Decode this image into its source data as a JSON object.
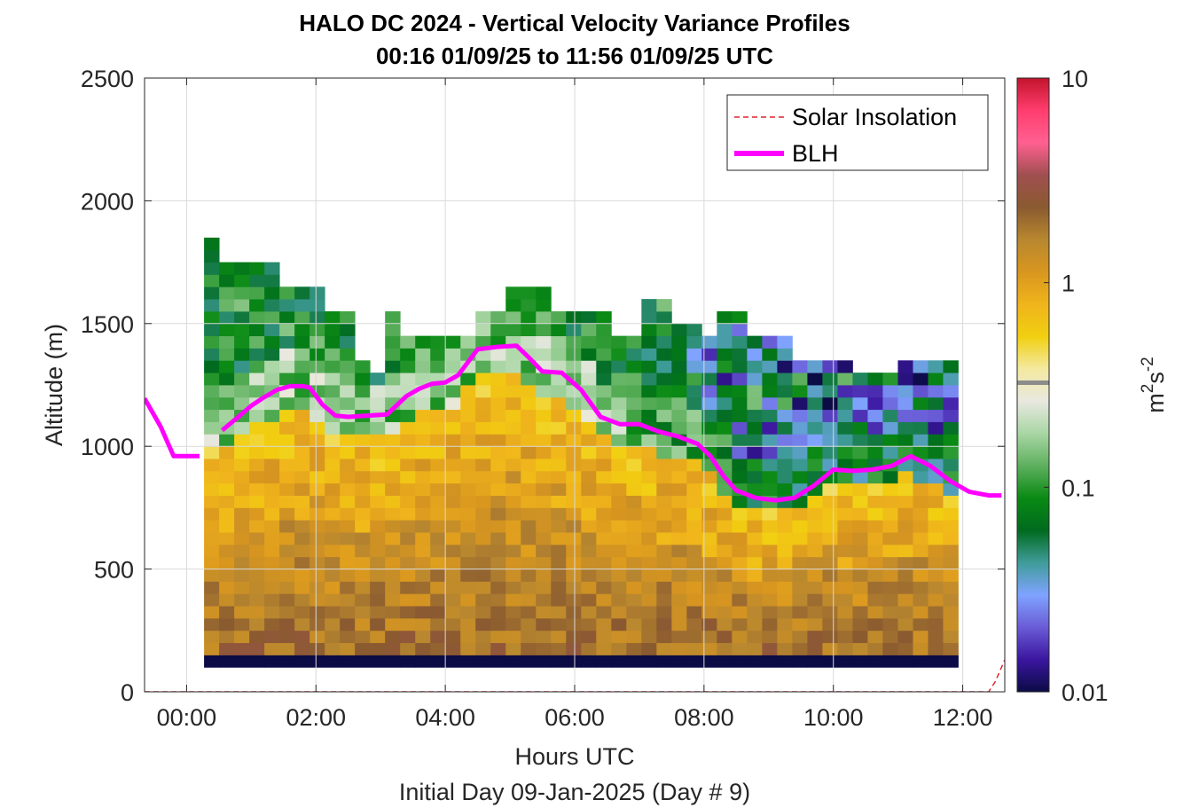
{
  "figure": {
    "title_line1": "HALO DC 2024 - Vertical Velocity Variance Profiles",
    "title_line2": "00:16 01/09/25 to 11:56 01/09/25  UTC",
    "xlabel": "Hours UTC",
    "sublabel": "Initial Day 09-Jan-2025 (Day # 9)",
    "ylabel": "Altitude (m)"
  },
  "chart_data": {
    "type": "heatmap",
    "xlabel": "Hours UTC",
    "ylabel": "Altitude (m)",
    "xlim_hours": [
      -0.65,
      12.65
    ],
    "ylim": [
      0,
      2500
    ],
    "x_ticks": [
      0,
      2,
      4,
      6,
      8,
      10,
      12
    ],
    "x_tick_labels": [
      "00:00",
      "02:00",
      "04:00",
      "06:00",
      "08:00",
      "10:00",
      "12:00"
    ],
    "y_ticks": [
      0,
      500,
      1000,
      1500,
      2000,
      2500
    ],
    "y_tick_labels": [
      "0",
      "500",
      "1000",
      "1500",
      "2000",
      "2500"
    ],
    "grid": true,
    "legend_position": "top-right",
    "legend": [
      {
        "name": "Solar Insolation",
        "color": "#e0242e",
        "style": "dashed"
      },
      {
        "name": "BLH",
        "color": "#ff00ff",
        "style": "solid"
      }
    ],
    "colorbar": {
      "label_base": "m",
      "label_exp1": "2",
      "label_mid": "s",
      "label_exp2": "-2",
      "scale": "log",
      "range": [
        0.01,
        10
      ],
      "ticks": [
        0.01,
        0.1,
        1,
        10
      ],
      "tick_labels": [
        "0.01",
        "0.1",
        "1",
        "10"
      ],
      "colors": [
        "#0b0b45",
        "#3b16a0",
        "#6a5cd6",
        "#7fa3ff",
        "#3f9c9a",
        "#006b1e",
        "#0a8a14",
        "#5eb05e",
        "#a9d6a4",
        "#e8e8e0",
        "#f4e9a0",
        "#f1cf10",
        "#f0b41c",
        "#d8961f",
        "#b8872f",
        "#8a5a30",
        "#a04f50",
        "#ff6091",
        "#ff3d6e",
        "#c3142d"
      ]
    },
    "heatmap_time_start_hours": 0.27,
    "heatmap_time_end_hours": 11.93,
    "heatmap_altitude_bottom_m": 100,
    "heatmap_bin_height_m": 50,
    "heatmap_bottom_row_value": 0.01,
    "profile_top_altitude_m": [
      1830,
      1730,
      1730,
      1730,
      1730,
      1630,
      1630,
      1630,
      1520,
      1520,
      1330,
      1300,
      1520,
      1440,
      1440,
      1440,
      1440,
      1440,
      1540,
      1540,
      1630,
      1630,
      1630,
      1540,
      1540,
      1540,
      1540,
      1440,
      1440,
      1590,
      1590,
      1490,
      1490,
      1440,
      1540,
      1540,
      1440,
      1440,
      1440,
      1350,
      1350,
      1350,
      1350,
      1290,
      1290,
      1290,
      1330,
      1330,
      1330,
      1330
    ],
    "blh_segment_1": {
      "x": [
        -0.65,
        -0.4,
        -0.2,
        0.0,
        0.2
      ],
      "y": [
        1195,
        1080,
        960,
        960,
        960
      ]
    },
    "blh_segment_2": {
      "x": [
        0.55,
        0.8,
        1.0,
        1.2,
        1.4,
        1.6,
        1.8,
        1.9,
        2.1,
        2.3,
        2.5,
        2.8,
        3.1,
        3.4,
        3.6,
        3.8,
        4.0,
        4.2,
        4.5,
        4.8,
        5.1,
        5.3,
        5.5,
        5.8,
        6.1,
        6.4,
        6.7,
        7.0,
        7.3,
        7.6,
        7.9,
        8.1,
        8.3,
        8.5,
        8.8,
        9.1,
        9.4,
        9.7,
        10.0,
        10.3,
        10.6,
        10.9,
        11.2,
        11.5,
        11.8,
        12.1,
        12.4,
        12.6
      ],
      "y": [
        1065,
        1120,
        1165,
        1200,
        1230,
        1245,
        1245,
        1240,
        1170,
        1125,
        1120,
        1125,
        1130,
        1205,
        1235,
        1255,
        1260,
        1290,
        1395,
        1405,
        1410,
        1360,
        1305,
        1300,
        1230,
        1120,
        1090,
        1090,
        1060,
        1040,
        1010,
        960,
        880,
        820,
        790,
        780,
        790,
        840,
        905,
        900,
        905,
        920,
        960,
        920,
        860,
        815,
        800,
        800
      ]
    },
    "solar_insolation": {
      "x": [
        -0.65,
        12.4,
        12.5,
        12.65
      ],
      "y": [
        0,
        0,
        40,
        130
      ]
    }
  }
}
